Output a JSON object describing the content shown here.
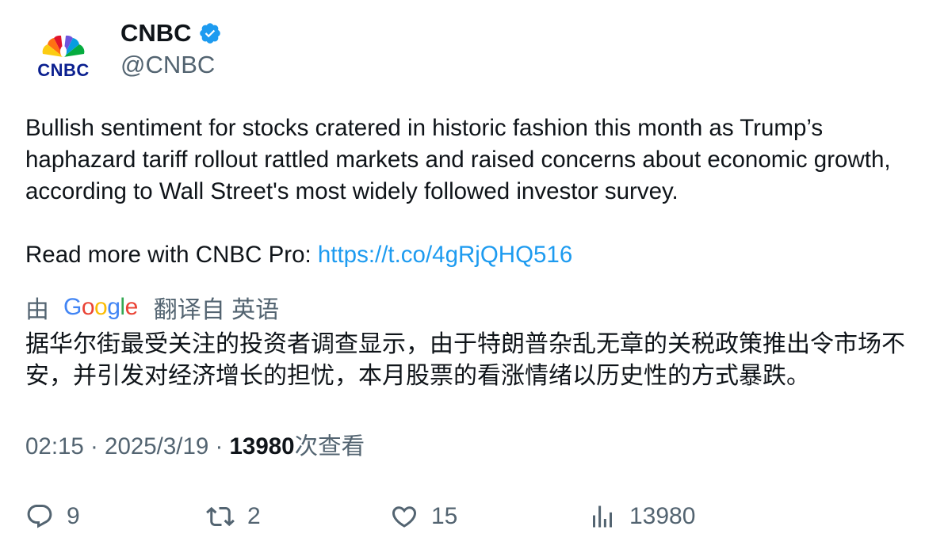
{
  "author": {
    "name": "CNBC",
    "handle": "@CNBC",
    "avatar_text": "CNBC",
    "verified_icon": "verified-badge-icon"
  },
  "tweet": {
    "text_line1": "Bullish sentiment for stocks cratered in historic fashion this month as Trump’s haphazard tariff rollout rattled markets and raised concerns about economic growth, according to Wall Street's most widely followed investor survey.",
    "read_more_prefix": "Read more with CNBC Pro: ",
    "link": "https://t.co/4gRjQHQ516"
  },
  "translation": {
    "by": "由",
    "provider": "Google",
    "from_label": "翻译自 英语",
    "text": "据华尔街最受关注的投资者调查显示，由于特朗普杂乱无章的关税政策推出令市场不安，并引发对经济增长的担忧，本月股票的看涨情绪以历史性的方式暴跌。"
  },
  "meta": {
    "time": "02:15",
    "sep1": " · ",
    "date": "2025/3/19",
    "sep2": " · ",
    "views": "13980",
    "views_label": "次查看"
  },
  "actions": {
    "reply_count": "9",
    "retweet_count": "2",
    "like_count": "15",
    "views_count": "13980"
  },
  "colors": {
    "link": "#1d9bf0",
    "secondary_text": "#536471",
    "primary_text": "#0f1419"
  }
}
